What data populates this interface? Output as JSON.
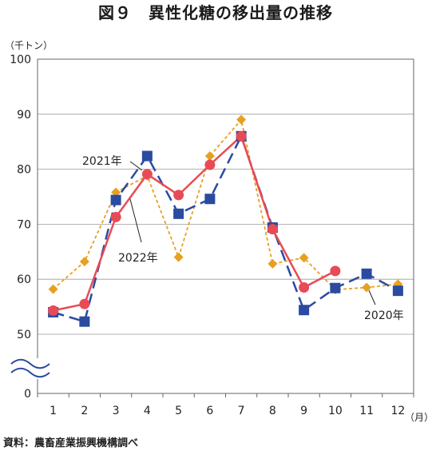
{
  "chart_data": {
    "type": "line",
    "title": "図９　異性化糖の移出量の推移",
    "ylabel": "（千トン）",
    "xlabel": "（月）",
    "source": "資料：農畜産業振興機構調べ",
    "categories": [
      "1",
      "2",
      "3",
      "4",
      "5",
      "6",
      "7",
      "8",
      "9",
      "10",
      "11",
      "12"
    ],
    "y_ticks": [
      "0",
      "50",
      "60",
      "70",
      "80",
      "90",
      "100"
    ],
    "ylim": [
      50,
      100
    ],
    "axis_break": true,
    "grid": true,
    "series": [
      {
        "name": "2020年",
        "color": "#E8A020",
        "line_style": "dotted",
        "marker": "diamond",
        "values": [
          58.2,
          63.2,
          75.8,
          78.8,
          64.0,
          82.4,
          89.0,
          62.8,
          63.9,
          58.1,
          58.5,
          59.1
        ]
      },
      {
        "name": "2021年",
        "color": "#2B4BA0",
        "line_style": "dashed",
        "marker": "square",
        "values": [
          54.0,
          52.3,
          74.4,
          82.4,
          71.9,
          74.6,
          86.0,
          69.4,
          54.4,
          58.4,
          61.0,
          57.9
        ]
      },
      {
        "name": "2022年",
        "color": "#E84B55",
        "line_style": "solid",
        "marker": "circle",
        "values": [
          54.3,
          55.5,
          71.3,
          79.1,
          75.3,
          80.8,
          86.0,
          69.1,
          58.5,
          61.5,
          null,
          null
        ]
      }
    ]
  }
}
